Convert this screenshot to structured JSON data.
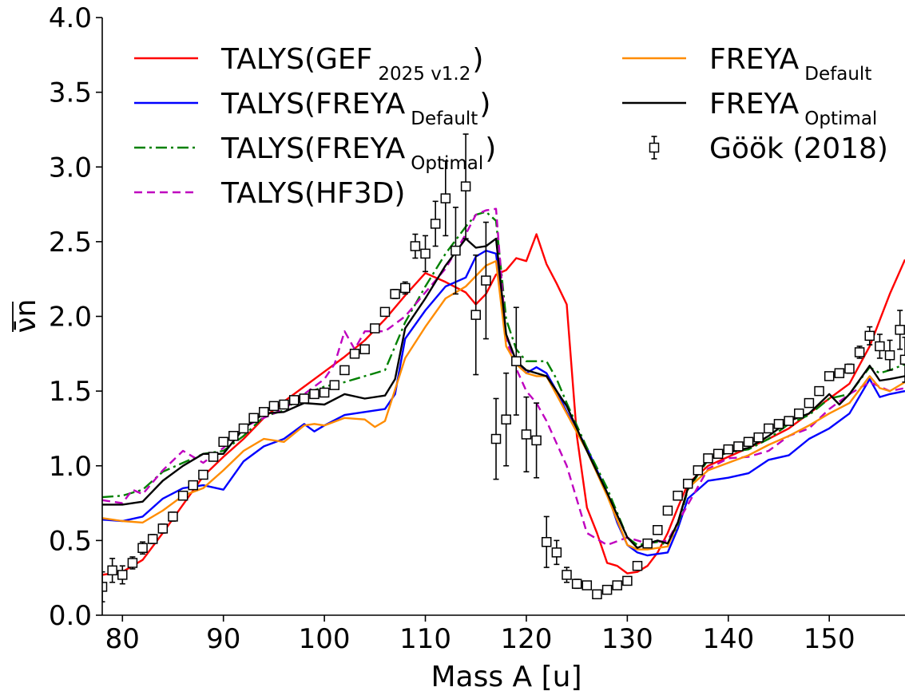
{
  "chart_data": {
    "type": "line",
    "xlabel": "Mass A [u]",
    "ylabel": "ν̄n",
    "xlim": [
      78,
      157.5
    ],
    "ylim": [
      0.0,
      4.0
    ],
    "xticks": [
      "80",
      "90",
      "100",
      "110",
      "120",
      "130",
      "140",
      "150"
    ],
    "yticks": [
      "0.0",
      "0.5",
      "1.0",
      "1.5",
      "2.0",
      "2.5",
      "3.0",
      "3.5",
      "4.0"
    ],
    "grid": false,
    "legend_placement": "top",
    "series": [
      {
        "name": "TALYS(GEF 2025 v1.2)",
        "legend_main": "TALYS(GEF",
        "legend_sub": "2025 v1.2",
        "legend_close": ")",
        "color": "#ff0000",
        "dash": "",
        "x": [
          78,
          80,
          82,
          84,
          86,
          88,
          90,
          92,
          94,
          96,
          98,
          100,
          102,
          104,
          106,
          108,
          110,
          112,
          114,
          115,
          116,
          117,
          118,
          119,
          120,
          121,
          122,
          123,
          124,
          125,
          126,
          127,
          128,
          129,
          130,
          131,
          132,
          133,
          134,
          135,
          136,
          138,
          140,
          142,
          144,
          146,
          148,
          150,
          152,
          154,
          156,
          157.5
        ],
        "y": [
          0.27,
          0.29,
          0.37,
          0.55,
          0.74,
          0.93,
          1.06,
          1.18,
          1.32,
          1.43,
          1.53,
          1.63,
          1.73,
          1.84,
          1.98,
          2.14,
          2.29,
          2.23,
          2.16,
          2.08,
          2.15,
          2.28,
          2.31,
          2.39,
          2.37,
          2.55,
          2.35,
          2.22,
          2.08,
          1.2,
          0.72,
          0.55,
          0.35,
          0.33,
          0.28,
          0.29,
          0.33,
          0.42,
          0.55,
          0.72,
          0.88,
          1.0,
          1.06,
          1.12,
          1.18,
          1.25,
          1.35,
          1.45,
          1.55,
          1.8,
          2.15,
          2.38
        ]
      },
      {
        "name": "TALYS(FREYA Default)",
        "legend_main": "TALYS(FREYA",
        "legend_sub": "Default",
        "legend_close": ")",
        "color": "#0000ff",
        "dash": "",
        "x": [
          78,
          80,
          82,
          84,
          86,
          88,
          90,
          92,
          94,
          96,
          98,
          99,
          100,
          102,
          104,
          106,
          107,
          108,
          110,
          112,
          114,
          115,
          116,
          117,
          118,
          119,
          120,
          121,
          122,
          123,
          124,
          126,
          128,
          129,
          130,
          131,
          132,
          133,
          134,
          135,
          136,
          138,
          140,
          142,
          144,
          146,
          148,
          150,
          152,
          154,
          155,
          156,
          157.5
        ],
        "y": [
          0.64,
          0.63,
          0.66,
          0.78,
          0.85,
          0.87,
          0.84,
          1.03,
          1.13,
          1.18,
          1.28,
          1.23,
          1.27,
          1.34,
          1.36,
          1.38,
          1.48,
          1.85,
          2.04,
          2.2,
          2.26,
          2.4,
          2.44,
          2.42,
          1.87,
          1.7,
          1.62,
          1.66,
          1.62,
          1.5,
          1.36,
          1.12,
          0.82,
          0.62,
          0.47,
          0.42,
          0.4,
          0.41,
          0.42,
          0.58,
          0.78,
          0.9,
          0.92,
          0.95,
          1.04,
          1.07,
          1.18,
          1.25,
          1.35,
          1.58,
          1.46,
          1.48,
          1.5
        ]
      },
      {
        "name": "TALYS(FREYA Optimal)",
        "legend_main": "TALYS(FREYA",
        "legend_sub": "Optimal",
        "legend_close": ")",
        "color": "#008000",
        "dash": "14 5 3 5",
        "x": [
          78,
          80,
          82,
          84,
          86,
          88,
          90,
          92,
          94,
          96,
          98,
          100,
          102,
          104,
          106,
          108,
          110,
          112,
          114,
          115,
          116,
          117,
          118,
          119,
          120,
          121,
          122,
          123,
          124,
          126,
          128,
          130,
          131,
          132,
          133,
          134,
          135,
          136,
          138,
          140,
          142,
          144,
          146,
          148,
          150,
          152,
          154,
          155,
          156,
          157.5
        ],
        "y": [
          0.79,
          0.8,
          0.84,
          0.96,
          1.02,
          1.08,
          1.1,
          1.2,
          1.33,
          1.37,
          1.48,
          1.53,
          1.56,
          1.6,
          1.64,
          1.96,
          2.2,
          2.42,
          2.6,
          2.68,
          2.7,
          2.64,
          1.98,
          1.78,
          1.7,
          1.7,
          1.7,
          1.58,
          1.42,
          1.12,
          0.85,
          0.52,
          0.47,
          0.48,
          0.49,
          0.47,
          0.6,
          0.84,
          1.04,
          1.09,
          1.11,
          1.18,
          1.28,
          1.34,
          1.45,
          1.48,
          1.66,
          1.62,
          1.64,
          1.68
        ]
      },
      {
        "name": "TALYS(HF3D)",
        "legend_main": "TALYS(HF3D)",
        "legend_sub": "",
        "legend_close": "",
        "color": "#bf00bf",
        "dash": "10 6",
        "x": [
          78,
          80,
          81,
          82,
          84,
          86,
          88,
          90,
          92,
          94,
          96,
          98,
          100,
          101,
          102,
          103,
          104,
          106,
          108,
          110,
          112,
          114,
          115,
          116,
          117,
          118,
          119,
          120,
          121,
          122,
          124,
          126,
          128,
          130,
          132,
          134,
          136,
          138,
          140,
          142,
          144,
          146,
          148,
          150,
          152,
          154,
          156,
          157.5
        ],
        "y": [
          0.77,
          0.75,
          0.84,
          0.81,
          0.97,
          1.1,
          1.02,
          1.12,
          1.26,
          1.32,
          1.38,
          1.48,
          1.58,
          1.68,
          1.9,
          1.78,
          1.9,
          1.9,
          2.0,
          2.16,
          2.32,
          2.55,
          2.68,
          2.71,
          2.72,
          1.85,
          1.65,
          1.5,
          1.42,
          1.3,
          1.0,
          0.55,
          0.47,
          0.52,
          0.48,
          0.5,
          0.74,
          0.98,
          1.05,
          1.06,
          1.1,
          1.2,
          1.25,
          1.38,
          1.48,
          1.56,
          1.5,
          1.52
        ]
      },
      {
        "name": "FREYA Default",
        "legend_main": "FREYA",
        "legend_sub": "Default",
        "legend_close": "",
        "color": "#ff8c00",
        "dash": "",
        "x": [
          78,
          80,
          82,
          84,
          86,
          88,
          90,
          92,
          94,
          96,
          98,
          99,
          100,
          102,
          104,
          105,
          106,
          108,
          110,
          112,
          114,
          116,
          117,
          118,
          119,
          120,
          121,
          122,
          124,
          126,
          128,
          130,
          131,
          132,
          133,
          134,
          135,
          136,
          138,
          140,
          142,
          144,
          146,
          148,
          150,
          152,
          154,
          155,
          156,
          157.5
        ],
        "y": [
          0.65,
          0.63,
          0.62,
          0.7,
          0.8,
          0.85,
          0.97,
          1.1,
          1.18,
          1.16,
          1.27,
          1.28,
          1.27,
          1.32,
          1.31,
          1.26,
          1.3,
          1.72,
          1.93,
          2.12,
          2.2,
          2.34,
          2.37,
          1.8,
          1.68,
          1.62,
          1.6,
          1.6,
          1.35,
          1.1,
          0.8,
          0.47,
          0.44,
          0.44,
          0.45,
          0.46,
          0.62,
          0.85,
          0.97,
          1.02,
          1.07,
          1.14,
          1.2,
          1.27,
          1.35,
          1.42,
          1.6,
          1.52,
          1.5,
          1.56
        ]
      },
      {
        "name": "FREYA Optimal",
        "legend_main": "FREYA",
        "legend_sub": "Optimal",
        "legend_close": "",
        "color": "#000000",
        "dash": "",
        "x": [
          78,
          80,
          82,
          84,
          86,
          88,
          90,
          92,
          94,
          96,
          98,
          100,
          102,
          104,
          106,
          107,
          108,
          110,
          112,
          114,
          115,
          116,
          117,
          118,
          119,
          120,
          121,
          122,
          123,
          124,
          126,
          128,
          130,
          131,
          132,
          133,
          134,
          135,
          136,
          138,
          140,
          142,
          144,
          146,
          148,
          150,
          151,
          152,
          154,
          155,
          156,
          157.5
        ],
        "y": [
          0.74,
          0.74,
          0.76,
          0.9,
          1.0,
          1.08,
          1.08,
          1.25,
          1.35,
          1.36,
          1.42,
          1.41,
          1.48,
          1.45,
          1.47,
          1.58,
          1.92,
          2.12,
          2.34,
          2.52,
          2.46,
          2.47,
          2.52,
          1.88,
          1.7,
          1.64,
          1.62,
          1.6,
          1.5,
          1.4,
          1.1,
          0.82,
          0.52,
          0.45,
          0.48,
          0.5,
          0.48,
          0.62,
          0.85,
          1.05,
          1.09,
          1.12,
          1.2,
          1.3,
          1.35,
          1.48,
          1.41,
          1.48,
          1.67,
          1.57,
          1.58,
          1.6
        ]
      }
    ],
    "experimental": {
      "name": "Göök (2018)",
      "legend_main": "Göök (2018)",
      "marker": "open-square",
      "color": "#000000",
      "points": [
        [
          78,
          0.19,
          0.1
        ],
        [
          79,
          0.3,
          0.08
        ],
        [
          80,
          0.27,
          0.06
        ],
        [
          81,
          0.35,
          0.04
        ],
        [
          82,
          0.45,
          0.04
        ],
        [
          83,
          0.51,
          0.03
        ],
        [
          84,
          0.58,
          0.03
        ],
        [
          85,
          0.66,
          0.03
        ],
        [
          86,
          0.8,
          0.02
        ],
        [
          87,
          0.87,
          0.02
        ],
        [
          88,
          0.94,
          0.02
        ],
        [
          89,
          1.06,
          0.02
        ],
        [
          90,
          1.16,
          0.02
        ],
        [
          91,
          1.2,
          0.02
        ],
        [
          92,
          1.25,
          0.02
        ],
        [
          93,
          1.32,
          0.02
        ],
        [
          94,
          1.36,
          0.02
        ],
        [
          95,
          1.4,
          0.02
        ],
        [
          96,
          1.41,
          0.02
        ],
        [
          97,
          1.44,
          0.02
        ],
        [
          98,
          1.45,
          0.02
        ],
        [
          99,
          1.48,
          0.02
        ],
        [
          100,
          1.49,
          0.02
        ],
        [
          101,
          1.54,
          0.02
        ],
        [
          102,
          1.64,
          0.02
        ],
        [
          103,
          1.75,
          0.02
        ],
        [
          104,
          1.78,
          0.02
        ],
        [
          105,
          1.92,
          0.02
        ],
        [
          106,
          2.03,
          0.02
        ],
        [
          107,
          2.15,
          0.03
        ],
        [
          108,
          2.19,
          0.04
        ],
        [
          109,
          2.47,
          0.08
        ],
        [
          110,
          2.42,
          0.12
        ],
        [
          111,
          2.62,
          0.15
        ],
        [
          112,
          2.79,
          0.25
        ],
        [
          113,
          2.44,
          0.29
        ],
        [
          114,
          2.87,
          0.35
        ],
        [
          115,
          2.01,
          0.4
        ],
        [
          116,
          2.24,
          0.39
        ],
        [
          117,
          1.18,
          0.27
        ],
        [
          118,
          1.31,
          0.31
        ],
        [
          119,
          1.7,
          0.36
        ],
        [
          120,
          1.21,
          0.25
        ],
        [
          121,
          1.17,
          0.25
        ],
        [
          122,
          0.49,
          0.17
        ],
        [
          123,
          0.42,
          0.08
        ],
        [
          124,
          0.27,
          0.05
        ],
        [
          125,
          0.21,
          0.03
        ],
        [
          126,
          0.2,
          0.02
        ],
        [
          127,
          0.14,
          0.02
        ],
        [
          128,
          0.17,
          0.02
        ],
        [
          129,
          0.2,
          0.02
        ],
        [
          130,
          0.23,
          0.02
        ],
        [
          131,
          0.33,
          0.02
        ],
        [
          132,
          0.48,
          0.02
        ],
        [
          133,
          0.57,
          0.02
        ],
        [
          134,
          0.7,
          0.02
        ],
        [
          135,
          0.8,
          0.02
        ],
        [
          136,
          0.88,
          0.02
        ],
        [
          137,
          0.97,
          0.02
        ],
        [
          138,
          1.05,
          0.02
        ],
        [
          139,
          1.08,
          0.02
        ],
        [
          140,
          1.11,
          0.02
        ],
        [
          141,
          1.13,
          0.02
        ],
        [
          142,
          1.16,
          0.02
        ],
        [
          143,
          1.19,
          0.02
        ],
        [
          144,
          1.25,
          0.02
        ],
        [
          145,
          1.28,
          0.02
        ],
        [
          146,
          1.3,
          0.02
        ],
        [
          147,
          1.35,
          0.02
        ],
        [
          148,
          1.42,
          0.02
        ],
        [
          149,
          1.5,
          0.02
        ],
        [
          150,
          1.6,
          0.02
        ],
        [
          151,
          1.62,
          0.02
        ],
        [
          152,
          1.65,
          0.03
        ],
        [
          153,
          1.76,
          0.04
        ],
        [
          154,
          1.87,
          0.06
        ],
        [
          155,
          1.8,
          0.08
        ],
        [
          156,
          1.74,
          0.1
        ],
        [
          157,
          1.91,
          0.13
        ],
        [
          157.5,
          1.71,
          0.15
        ]
      ]
    }
  }
}
